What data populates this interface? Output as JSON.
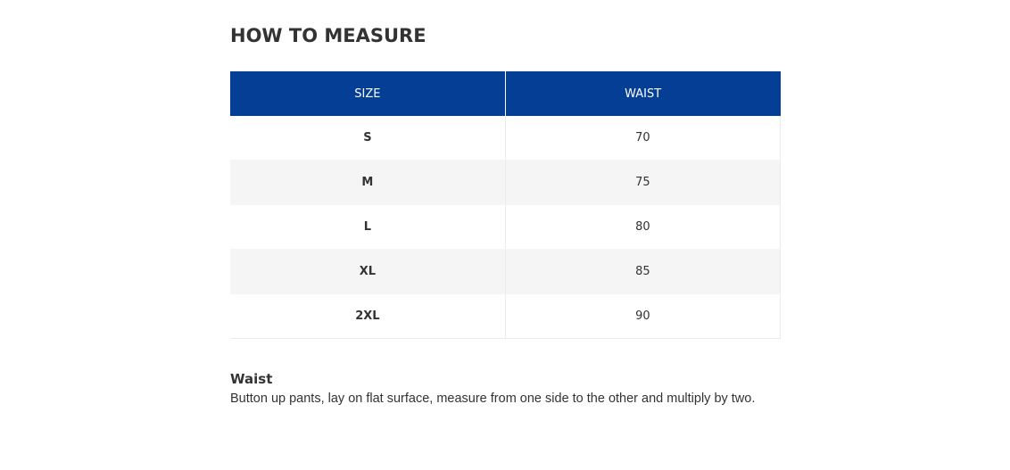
{
  "page_title": "HOW TO MEASURE",
  "table": {
    "headers": [
      "SIZE",
      "WAIST"
    ],
    "rows": [
      {
        "size": "S",
        "waist": "70"
      },
      {
        "size": "M",
        "waist": "75"
      },
      {
        "size": "L",
        "waist": "80"
      },
      {
        "size": "XL",
        "waist": "85"
      },
      {
        "size": "2XL",
        "waist": "90"
      }
    ]
  },
  "note": {
    "title": "Waist",
    "text": "Button up pants, lay on flat surface, measure from one side to the other and multiply by two."
  },
  "colors": {
    "header_bg": "#053e95",
    "stripe_bg": "#f5f5f5",
    "text": "#333333"
  }
}
